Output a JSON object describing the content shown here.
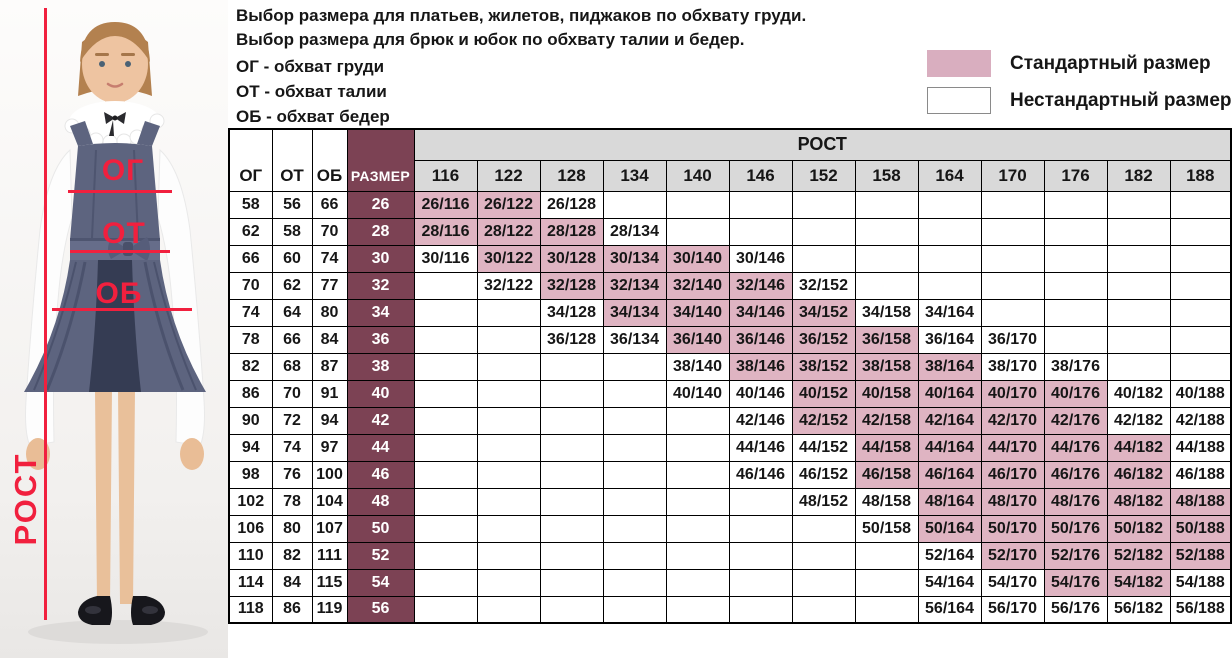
{
  "header": {
    "title_line1": "Выбор размера для платьев, жилетов, пиджаков по обхвату груди.",
    "title_line2": "Выбор размера для брюк и юбок по обхвату талии и бедер.",
    "abbr_line1": "ОГ - обхват груди",
    "abbr_line2": "ОТ - обхват талии",
    "abbr_line3": "ОБ - обхват бедер"
  },
  "legend": {
    "standard_label": "Стандартный размер",
    "nonstandard_label": "Нестандартный размер",
    "standard_color": "#d9aebf",
    "nonstandard_color": "#ffffff"
  },
  "figure": {
    "chest_label": "ОГ",
    "waist_label": "ОТ",
    "hips_label": "ОБ",
    "height_label": "РОСТ",
    "annotation_color": "#f1203e"
  },
  "table": {
    "column_headers": {
      "og": "ОГ",
      "ot": "ОТ",
      "ob": "ОБ",
      "size": "РАЗМЕР",
      "rost": "РОСТ"
    },
    "heights": [
      "116",
      "122",
      "128",
      "134",
      "140",
      "146",
      "152",
      "158",
      "164",
      "170",
      "176",
      "182",
      "188"
    ],
    "colors": {
      "standard_cell": "#dfb4c2",
      "size_column": "#7c4254",
      "header_gray": "#d9d9d9",
      "border": "#000000"
    },
    "rows": [
      {
        "og": "58",
        "ot": "56",
        "ob": "66",
        "size": "26",
        "cells": [
          {
            "label": "26/116",
            "type": "standard"
          },
          {
            "label": "26/122",
            "type": "standard"
          },
          {
            "label": "26/128",
            "type": "nonstandard"
          },
          null,
          null,
          null,
          null,
          null,
          null,
          null,
          null,
          null,
          null
        ]
      },
      {
        "og": "62",
        "ot": "58",
        "ob": "70",
        "size": "28",
        "cells": [
          {
            "label": "28/116",
            "type": "standard"
          },
          {
            "label": "28/122",
            "type": "standard"
          },
          {
            "label": "28/128",
            "type": "standard"
          },
          {
            "label": "28/134",
            "type": "nonstandard"
          },
          null,
          null,
          null,
          null,
          null,
          null,
          null,
          null,
          null
        ]
      },
      {
        "og": "66",
        "ot": "60",
        "ob": "74",
        "size": "30",
        "cells": [
          {
            "label": "30/116",
            "type": "nonstandard"
          },
          {
            "label": "30/122",
            "type": "standard"
          },
          {
            "label": "30/128",
            "type": "standard"
          },
          {
            "label": "30/134",
            "type": "standard"
          },
          {
            "label": "30/140",
            "type": "standard"
          },
          {
            "label": "30/146",
            "type": "nonstandard"
          },
          null,
          null,
          null,
          null,
          null,
          null,
          null
        ]
      },
      {
        "og": "70",
        "ot": "62",
        "ob": "77",
        "size": "32",
        "cells": [
          null,
          {
            "label": "32/122",
            "type": "nonstandard"
          },
          {
            "label": "32/128",
            "type": "standard"
          },
          {
            "label": "32/134",
            "type": "standard"
          },
          {
            "label": "32/140",
            "type": "standard"
          },
          {
            "label": "32/146",
            "type": "standard"
          },
          {
            "label": "32/152",
            "type": "nonstandard"
          },
          null,
          null,
          null,
          null,
          null,
          null
        ]
      },
      {
        "og": "74",
        "ot": "64",
        "ob": "80",
        "size": "34",
        "cells": [
          null,
          null,
          {
            "label": "34/128",
            "type": "nonstandard"
          },
          {
            "label": "34/134",
            "type": "standard"
          },
          {
            "label": "34/140",
            "type": "standard"
          },
          {
            "label": "34/146",
            "type": "standard"
          },
          {
            "label": "34/152",
            "type": "standard"
          },
          {
            "label": "34/158",
            "type": "nonstandard"
          },
          {
            "label": "34/164",
            "type": "nonstandard"
          },
          null,
          null,
          null,
          null
        ]
      },
      {
        "og": "78",
        "ot": "66",
        "ob": "84",
        "size": "36",
        "cells": [
          null,
          null,
          {
            "label": "36/128",
            "type": "nonstandard"
          },
          {
            "label": "36/134",
            "type": "nonstandard"
          },
          {
            "label": "36/140",
            "type": "standard"
          },
          {
            "label": "36/146",
            "type": "standard"
          },
          {
            "label": "36/152",
            "type": "standard"
          },
          {
            "label": "36/158",
            "type": "standard"
          },
          {
            "label": "36/164",
            "type": "nonstandard"
          },
          {
            "label": "36/170",
            "type": "nonstandard"
          },
          null,
          null,
          null
        ]
      },
      {
        "og": "82",
        "ot": "68",
        "ob": "87",
        "size": "38",
        "cells": [
          null,
          null,
          null,
          null,
          {
            "label": "38/140",
            "type": "nonstandard"
          },
          {
            "label": "38/146",
            "type": "standard"
          },
          {
            "label": "38/152",
            "type": "standard"
          },
          {
            "label": "38/158",
            "type": "standard"
          },
          {
            "label": "38/164",
            "type": "standard"
          },
          {
            "label": "38/170",
            "type": "nonstandard"
          },
          {
            "label": "38/176",
            "type": "nonstandard"
          },
          null,
          null
        ]
      },
      {
        "og": "86",
        "ot": "70",
        "ob": "91",
        "size": "40",
        "cells": [
          null,
          null,
          null,
          null,
          {
            "label": "40/140",
            "type": "nonstandard"
          },
          {
            "label": "40/146",
            "type": "nonstandard"
          },
          {
            "label": "40/152",
            "type": "standard"
          },
          {
            "label": "40/158",
            "type": "standard"
          },
          {
            "label": "40/164",
            "type": "standard"
          },
          {
            "label": "40/170",
            "type": "standard"
          },
          {
            "label": "40/176",
            "type": "standard"
          },
          {
            "label": "40/182",
            "type": "nonstandard"
          },
          {
            "label": "40/188",
            "type": "nonstandard"
          }
        ]
      },
      {
        "og": "90",
        "ot": "72",
        "ob": "94",
        "size": "42",
        "cells": [
          null,
          null,
          null,
          null,
          null,
          {
            "label": "42/146",
            "type": "nonstandard"
          },
          {
            "label": "42/152",
            "type": "standard"
          },
          {
            "label": "42/158",
            "type": "standard"
          },
          {
            "label": "42/164",
            "type": "standard"
          },
          {
            "label": "42/170",
            "type": "standard"
          },
          {
            "label": "42/176",
            "type": "standard"
          },
          {
            "label": "42/182",
            "type": "nonstandard"
          },
          {
            "label": "42/188",
            "type": "nonstandard"
          }
        ]
      },
      {
        "og": "94",
        "ot": "74",
        "ob": "97",
        "size": "44",
        "cells": [
          null,
          null,
          null,
          null,
          null,
          {
            "label": "44/146",
            "type": "nonstandard"
          },
          {
            "label": "44/152",
            "type": "nonstandard"
          },
          {
            "label": "44/158",
            "type": "standard"
          },
          {
            "label": "44/164",
            "type": "standard"
          },
          {
            "label": "44/170",
            "type": "standard"
          },
          {
            "label": "44/176",
            "type": "standard"
          },
          {
            "label": "44/182",
            "type": "standard"
          },
          {
            "label": "44/188",
            "type": "nonstandard"
          }
        ]
      },
      {
        "og": "98",
        "ot": "76",
        "ob": "100",
        "size": "46",
        "cells": [
          null,
          null,
          null,
          null,
          null,
          {
            "label": "46/146",
            "type": "nonstandard"
          },
          {
            "label": "46/152",
            "type": "nonstandard"
          },
          {
            "label": "46/158",
            "type": "standard"
          },
          {
            "label": "46/164",
            "type": "standard"
          },
          {
            "label": "46/170",
            "type": "standard"
          },
          {
            "label": "46/176",
            "type": "standard"
          },
          {
            "label": "46/182",
            "type": "standard"
          },
          {
            "label": "46/188",
            "type": "nonstandard"
          }
        ]
      },
      {
        "og": "102",
        "ot": "78",
        "ob": "104",
        "size": "48",
        "cells": [
          null,
          null,
          null,
          null,
          null,
          null,
          {
            "label": "48/152",
            "type": "nonstandard"
          },
          {
            "label": "48/158",
            "type": "nonstandard"
          },
          {
            "label": "48/164",
            "type": "standard"
          },
          {
            "label": "48/170",
            "type": "standard"
          },
          {
            "label": "48/176",
            "type": "standard"
          },
          {
            "label": "48/182",
            "type": "standard"
          },
          {
            "label": "48/188",
            "type": "standard"
          }
        ]
      },
      {
        "og": "106",
        "ot": "80",
        "ob": "107",
        "size": "50",
        "cells": [
          null,
          null,
          null,
          null,
          null,
          null,
          null,
          {
            "label": "50/158",
            "type": "nonstandard"
          },
          {
            "label": "50/164",
            "type": "standard"
          },
          {
            "label": "50/170",
            "type": "standard"
          },
          {
            "label": "50/176",
            "type": "standard"
          },
          {
            "label": "50/182",
            "type": "standard"
          },
          {
            "label": "50/188",
            "type": "standard"
          }
        ]
      },
      {
        "og": "110",
        "ot": "82",
        "ob": "111",
        "size": "52",
        "cells": [
          null,
          null,
          null,
          null,
          null,
          null,
          null,
          null,
          {
            "label": "52/164",
            "type": "nonstandard"
          },
          {
            "label": "52/170",
            "type": "standard"
          },
          {
            "label": "52/176",
            "type": "standard"
          },
          {
            "label": "52/182",
            "type": "standard"
          },
          {
            "label": "52/188",
            "type": "standard"
          }
        ]
      },
      {
        "og": "114",
        "ot": "84",
        "ob": "115",
        "size": "54",
        "cells": [
          null,
          null,
          null,
          null,
          null,
          null,
          null,
          null,
          {
            "label": "54/164",
            "type": "nonstandard"
          },
          {
            "label": "54/170",
            "type": "nonstandard"
          },
          {
            "label": "54/176",
            "type": "standard"
          },
          {
            "label": "54/182",
            "type": "standard"
          },
          {
            "label": "54/188",
            "type": "nonstandard"
          }
        ]
      },
      {
        "og": "118",
        "ot": "86",
        "ob": "119",
        "size": "56",
        "cells": [
          null,
          null,
          null,
          null,
          null,
          null,
          null,
          null,
          {
            "label": "56/164",
            "type": "nonstandard"
          },
          {
            "label": "56/170",
            "type": "nonstandard"
          },
          {
            "label": "56/176",
            "type": "nonstandard"
          },
          {
            "label": "56/182",
            "type": "nonstandard"
          },
          {
            "label": "56/188",
            "type": "nonstandard"
          }
        ]
      }
    ]
  }
}
